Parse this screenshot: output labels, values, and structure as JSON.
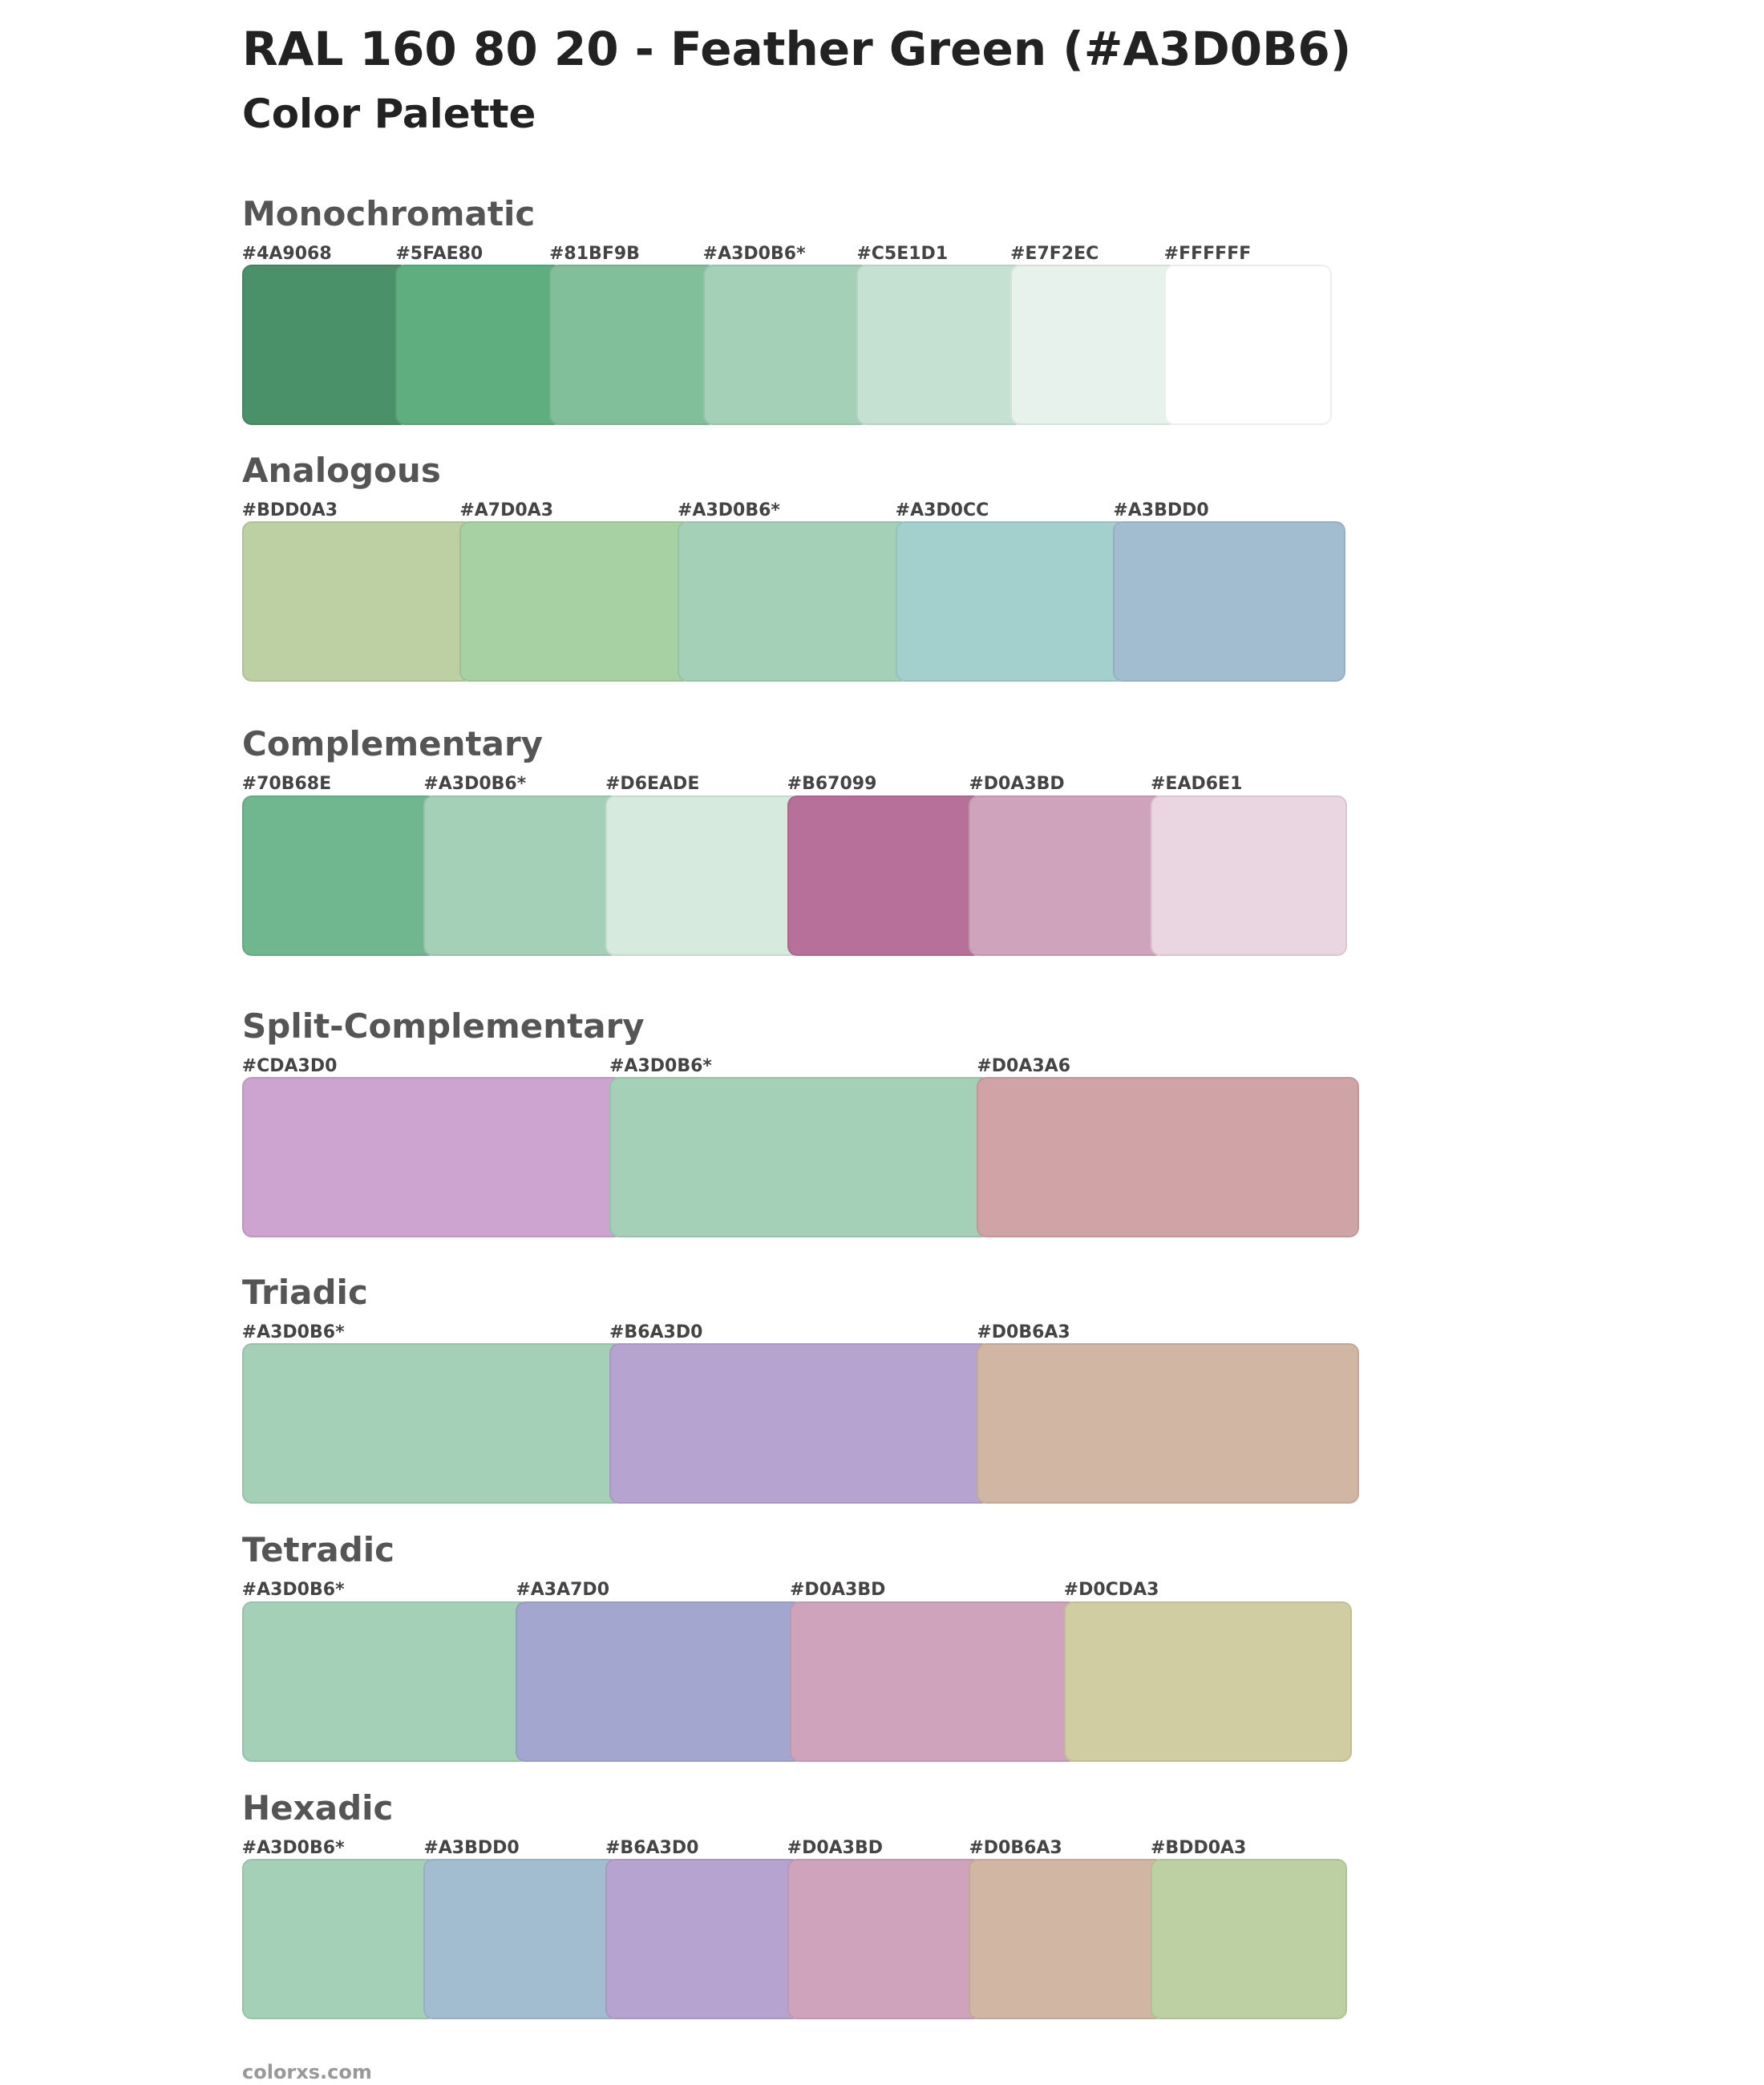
{
  "header": {
    "title": "RAL 160 80 20 - Feather Green (#A3D0B6)",
    "subtitle": "Color Palette"
  },
  "sections": [
    {
      "title": "Monochromatic",
      "swatches": [
        {
          "label": "#4A9068",
          "color": "#4A9068"
        },
        {
          "label": "#5FAE80",
          "color": "#5FAE80"
        },
        {
          "label": "#81BF9B",
          "color": "#81BF9B"
        },
        {
          "label": "#A3D0B6*",
          "color": "#A3D0B6"
        },
        {
          "label": "#C5E1D1",
          "color": "#C5E1D1"
        },
        {
          "label": "#E7F2EC",
          "color": "#E7F2EC"
        },
        {
          "label": "#FFFFFF",
          "color": "#FFFFFF"
        }
      ]
    },
    {
      "title": "Analogous",
      "swatches": [
        {
          "label": "#BDD0A3",
          "color": "#BDD0A3"
        },
        {
          "label": "#A7D0A3",
          "color": "#A7D0A3"
        },
        {
          "label": "#A3D0B6*",
          "color": "#A3D0B6"
        },
        {
          "label": "#A3D0CC",
          "color": "#A3D0CC"
        },
        {
          "label": "#A3BDD0",
          "color": "#A3BDD0"
        }
      ]
    },
    {
      "title": "Complementary",
      "swatches": [
        {
          "label": "#70B68E",
          "color": "#70B68E"
        },
        {
          "label": "#A3D0B6*",
          "color": "#A3D0B6"
        },
        {
          "label": "#D6EADE",
          "color": "#D6EADE"
        },
        {
          "label": "#B67099",
          "color": "#B67099"
        },
        {
          "label": "#D0A3BD",
          "color": "#D0A3BD"
        },
        {
          "label": "#EAD6E1",
          "color": "#EAD6E1"
        }
      ]
    },
    {
      "title": "Split-Complementary",
      "swatches": [
        {
          "label": "#CDA3D0",
          "color": "#CDA3D0"
        },
        {
          "label": "#A3D0B6*",
          "color": "#A3D0B6"
        },
        {
          "label": "#D0A3A6",
          "color": "#D0A3A6"
        }
      ]
    },
    {
      "title": "Triadic",
      "swatches": [
        {
          "label": "#A3D0B6*",
          "color": "#A3D0B6"
        },
        {
          "label": "#B6A3D0",
          "color": "#B6A3D0"
        },
        {
          "label": "#D0B6A3",
          "color": "#D0B6A3"
        }
      ]
    },
    {
      "title": "Tetradic",
      "swatches": [
        {
          "label": "#A3D0B6*",
          "color": "#A3D0B6"
        },
        {
          "label": "#A3A7D0",
          "color": "#A3A7D0"
        },
        {
          "label": "#D0A3BD",
          "color": "#D0A3BD"
        },
        {
          "label": "#D0CDA3",
          "color": "#D0CDA3"
        }
      ]
    },
    {
      "title": "Hexadic",
      "swatches": [
        {
          "label": "#A3D0B6*",
          "color": "#A3D0B6"
        },
        {
          "label": "#A3BDD0",
          "color": "#A3BDD0"
        },
        {
          "label": "#B6A3D0",
          "color": "#B6A3D0"
        },
        {
          "label": "#D0A3BD",
          "color": "#D0A3BD"
        },
        {
          "label": "#D0B6A3",
          "color": "#D0B6A3"
        },
        {
          "label": "#BDD0A3",
          "color": "#BDD0A3"
        }
      ]
    }
  ],
  "footer": "colorxs.com"
}
